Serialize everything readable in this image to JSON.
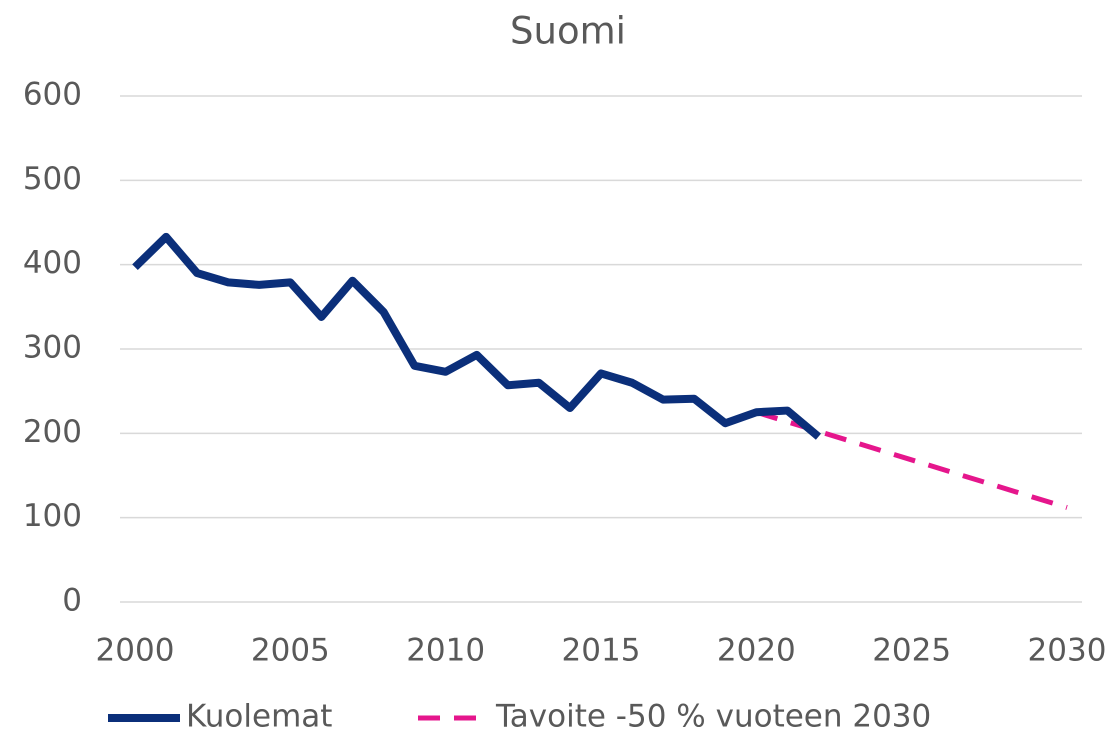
{
  "chart_data": {
    "type": "line",
    "title": "Suomi",
    "xlim": [
      2000,
      2030
    ],
    "xticks": [
      2000,
      2005,
      2010,
      2015,
      2020,
      2025,
      2030
    ],
    "ylim": [
      0,
      600
    ],
    "yticks": [
      0,
      100,
      200,
      300,
      400,
      500,
      600
    ],
    "grid": true,
    "legend": "bottom",
    "series": [
      {
        "name": "Kuolemat",
        "color": "#0b2f7a",
        "dash": false,
        "x": [
          2000,
          2001,
          2002,
          2003,
          2004,
          2005,
          2006,
          2007,
          2008,
          2009,
          2010,
          2011,
          2012,
          2013,
          2014,
          2015,
          2016,
          2017,
          2018,
          2019,
          2020,
          2021,
          2022
        ],
        "values": [
          397,
          433,
          390,
          379,
          376,
          379,
          338,
          381,
          344,
          280,
          273,
          293,
          257,
          260,
          230,
          271,
          260,
          240,
          241,
          212,
          225,
          227,
          196
        ]
      },
      {
        "name": "Tavoite -50 % vuoteen 2030",
        "color": "#e5168c",
        "dash": true,
        "x": [
          2020,
          2030
        ],
        "values": [
          225,
          112
        ]
      }
    ]
  }
}
